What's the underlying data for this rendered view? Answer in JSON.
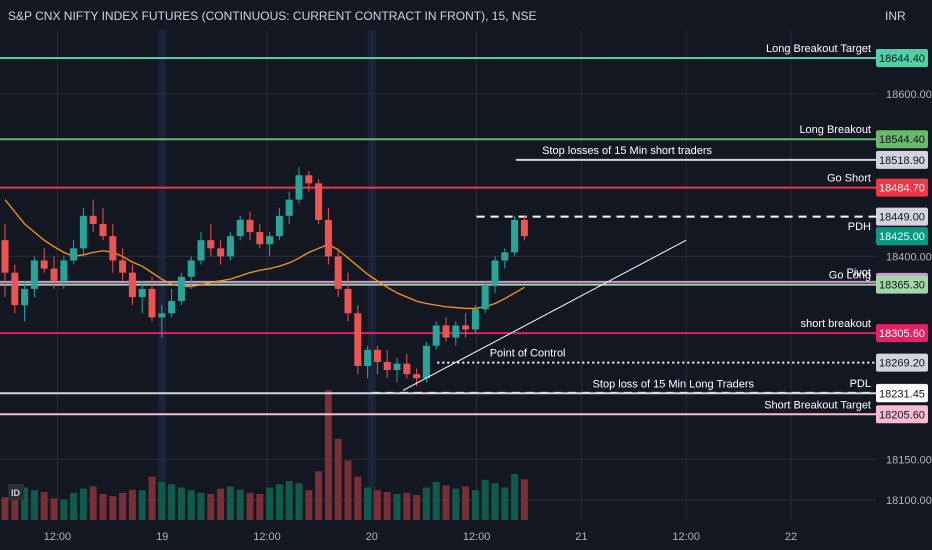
{
  "chart_data": {
    "type": "candlestick",
    "header": "S&P CNX NIFTY INDEX FUTURES (CONTINUOUS: CURRENT CONTRACT IN FRONT), 15, NSE",
    "currency": "INR",
    "y_ticks": [
      {
        "label": "18600.00",
        "value": 18600
      },
      {
        "label": "18400.00",
        "value": 18400
      },
      {
        "label": "18150.00",
        "value": 18150
      },
      {
        "label": "18100.00",
        "value": 18100
      }
    ],
    "x_ticks": [
      {
        "label": "12:00",
        "x": 8
      },
      {
        "label": "19",
        "x": 24
      },
      {
        "label": "12:00",
        "x": 40
      },
      {
        "label": "20",
        "x": 56
      },
      {
        "label": "12:00",
        "x": 72
      },
      {
        "label": "21",
        "x": 88
      },
      {
        "label": "12:00",
        "x": 104
      },
      {
        "label": "22",
        "x": 120
      }
    ],
    "levels": [
      {
        "label": "Long Breakout Target",
        "value": 18644.4,
        "price": "18644.40",
        "color": "#4fd1a5",
        "badge_bg": "#4fd1a5",
        "badge_fg": "#131722",
        "style": "solid",
        "x_start": 0
      },
      {
        "label": "Long Breakout",
        "value": 18544.4,
        "price": "18544.40",
        "color": "#66bb6a",
        "badge_bg": "#66bb6a",
        "badge_fg": "#131722",
        "style": "solid",
        "x_start": 0
      },
      {
        "label": "Stop losses of 15 Min short traders",
        "value": 18518.9,
        "price": "18518.90",
        "color": "#d1d4dc",
        "badge_bg": "#d1d4dc",
        "badge_fg": "#131722",
        "style": "solid",
        "x_start": 78
      },
      {
        "label": "Go Short",
        "value": 18484.7,
        "price": "18484.70",
        "color": "#f23645",
        "badge_bg": "#f23645",
        "badge_fg": "#ffffff",
        "style": "solid",
        "x_start": 0
      },
      {
        "label": "",
        "value": 18449.0,
        "price": "18449.00",
        "color": "#ffffff",
        "badge_bg": "#d1d4dc",
        "badge_fg": "#131722",
        "style": "dashed",
        "x_start": 72
      },
      {
        "label": "PDH",
        "value": 18425.0,
        "price": "18425.00",
        "color": "#363a45",
        "badge_bg": "#089981",
        "badge_fg": "#ffffff",
        "style": "none",
        "x_start": 72
      },
      {
        "label": "Pivot",
        "value": 18368.65,
        "price": "18368.65",
        "color": "#ce93d8",
        "badge_bg": "#ce93d8",
        "badge_fg": "#131722",
        "style": "solid",
        "x_start": 0
      },
      {
        "label": "Go Long",
        "value": 18365.3,
        "price": "18365.30",
        "color": "#a5d6a7",
        "badge_bg": "#a5d6a7",
        "badge_fg": "#131722",
        "style": "solid",
        "x_start": 0
      },
      {
        "label": "short breakout",
        "value": 18305.6,
        "price": "18305.60",
        "color": "#e91e63",
        "badge_bg": "#e91e63",
        "badge_fg": "#ffffff",
        "style": "solid",
        "x_start": 0
      },
      {
        "label": "Point of Control",
        "value": 18269.2,
        "price": "18269.20",
        "color": "#ffffff",
        "badge_bg": "#d1d4dc",
        "badge_fg": "#131722",
        "style": "dotted",
        "x_start": 66
      },
      {
        "label": "PDL",
        "value": 18231.9,
        "price": "18231.90",
        "color": "#ffffff",
        "badge_bg": "#d1d4dc",
        "badge_fg": "#131722",
        "style": "dashed",
        "x_start": 56
      },
      {
        "label": "Stop loss of 15 Min Long Traders",
        "value": 18231.45,
        "price": "18231.45",
        "color": "#d1d4dc",
        "badge_bg": "#ffffff",
        "badge_fg": "#131722",
        "style": "solid",
        "x_start": 0
      },
      {
        "label": "Short  Breakout Target",
        "value": 18205.6,
        "price": "18205.60",
        "color": "#f8bbd0",
        "badge_bg": "#f8bbd0",
        "badge_fg": "#131722",
        "style": "solid",
        "x_start": 0
      }
    ],
    "candles": [
      [
        18420,
        18440,
        18350,
        18380
      ],
      [
        18380,
        18390,
        18330,
        18340
      ],
      [
        18340,
        18370,
        18320,
        18360
      ],
      [
        18360,
        18400,
        18350,
        18395
      ],
      [
        18395,
        18410,
        18380,
        18385
      ],
      [
        18385,
        18400,
        18360,
        18370
      ],
      [
        18370,
        18400,
        18360,
        18395
      ],
      [
        18395,
        18420,
        18390,
        18410
      ],
      [
        18410,
        18460,
        18400,
        18450
      ],
      [
        18450,
        18470,
        18430,
        18440
      ],
      [
        18440,
        18460,
        18420,
        18425
      ],
      [
        18425,
        18440,
        18380,
        18395
      ],
      [
        18395,
        18410,
        18370,
        18380
      ],
      [
        18380,
        18390,
        18340,
        18350
      ],
      [
        18350,
        18370,
        18330,
        18360
      ],
      [
        18360,
        18375,
        18320,
        18325
      ],
      [
        18325,
        18340,
        18300,
        18330
      ],
      [
        18330,
        18360,
        18325,
        18345
      ],
      [
        18345,
        18380,
        18340,
        18375
      ],
      [
        18375,
        18400,
        18360,
        18395
      ],
      [
        18395,
        18430,
        18390,
        18420
      ],
      [
        18420,
        18440,
        18400,
        18410
      ],
      [
        18410,
        18420,
        18390,
        18400
      ],
      [
        18400,
        18430,
        18395,
        18425
      ],
      [
        18425,
        18450,
        18420,
        18445
      ],
      [
        18445,
        18455,
        18420,
        18430
      ],
      [
        18430,
        18440,
        18410,
        18415
      ],
      [
        18415,
        18430,
        18400,
        18425
      ],
      [
        18425,
        18460,
        18420,
        18450
      ],
      [
        18450,
        18480,
        18440,
        18470
      ],
      [
        18470,
        18510,
        18465,
        18500
      ],
      [
        18500,
        18505,
        18480,
        18490
      ],
      [
        18490,
        18495,
        18440,
        18445
      ],
      [
        18445,
        18460,
        18390,
        18400
      ],
      [
        18400,
        18410,
        18350,
        18360
      ],
      [
        18360,
        18380,
        18320,
        18330
      ],
      [
        18330,
        18340,
        18255,
        18265
      ],
      [
        18265,
        18290,
        18250,
        18285
      ],
      [
        18285,
        18290,
        18255,
        18270
      ],
      [
        18270,
        18285,
        18250,
        18260
      ],
      [
        18260,
        18275,
        18245,
        18268
      ],
      [
        18268,
        18280,
        18250,
        18255
      ],
      [
        18255,
        18262,
        18240,
        18250
      ],
      [
        18250,
        18295,
        18245,
        18290
      ],
      [
        18290,
        18320,
        18285,
        18315
      ],
      [
        18315,
        18325,
        18295,
        18300
      ],
      [
        18300,
        18320,
        18290,
        18315
      ],
      [
        18315,
        18330,
        18300,
        18310
      ],
      [
        18310,
        18340,
        18305,
        18335
      ],
      [
        18335,
        18370,
        18330,
        18365
      ],
      [
        18365,
        18400,
        18355,
        18395
      ],
      [
        18395,
        18410,
        18385,
        18405
      ],
      [
        18405,
        18450,
        18400,
        18445
      ],
      [
        18445,
        18450,
        18420,
        18425
      ]
    ],
    "volume": [
      42,
      45,
      60,
      55,
      52,
      40,
      38,
      50,
      58,
      62,
      48,
      44,
      50,
      56,
      55,
      80,
      70,
      66,
      60,
      55,
      50,
      48,
      58,
      62,
      56,
      50,
      48,
      60,
      66,
      72,
      68,
      55,
      90,
      240,
      150,
      110,
      80,
      60,
      55,
      52,
      48,
      50,
      46,
      60,
      70,
      64,
      58,
      62,
      55,
      74,
      68,
      60,
      85,
      75
    ],
    "moving_average": [
      18470,
      18455,
      18440,
      18430,
      18420,
      18412,
      18405,
      18400,
      18402,
      18405,
      18407,
      18405,
      18400,
      18393,
      18388,
      18380,
      18372,
      18366,
      18363,
      18363,
      18365,
      18368,
      18370,
      18372,
      18376,
      18380,
      18383,
      18385,
      18388,
      18392,
      18398,
      18405,
      18410,
      18415,
      18408,
      18398,
      18388,
      18378,
      18370,
      18362,
      18355,
      18350,
      18345,
      18342,
      18340,
      18338,
      18337,
      18336,
      18336,
      18338,
      18342,
      18348,
      18355,
      18362
    ]
  }
}
